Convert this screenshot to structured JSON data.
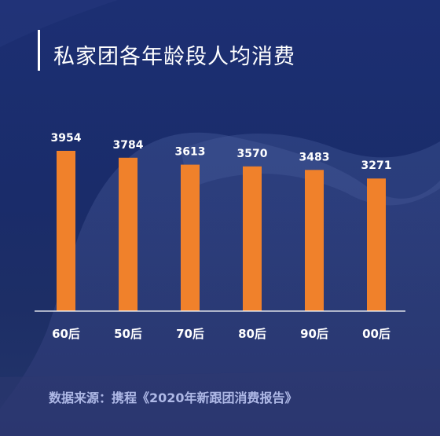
{
  "title": "私家团各年龄段人均消费",
  "source": "数据来源：携程《2020年新跟团消费报告》",
  "colors": {
    "bar": "#f0812b",
    "label": "#ffffff",
    "axis": "#ffffff",
    "source": "#aeb8e6"
  },
  "chart_data": {
    "type": "bar",
    "categories": [
      "60后",
      "50后",
      "70后",
      "80后",
      "90后",
      "00后"
    ],
    "values": [
      3954,
      3784,
      3613,
      3570,
      3483,
      3271
    ],
    "title": "私家团各年龄段人均消费",
    "xlabel": "",
    "ylabel": "",
    "grid": false,
    "legend": "none"
  }
}
